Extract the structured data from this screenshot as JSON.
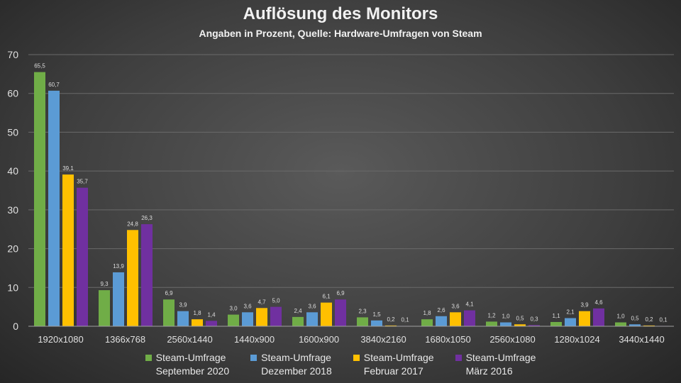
{
  "chart_data": {
    "type": "bar",
    "title": "Auflösung des Monitors",
    "subtitle": "Angaben in Prozent, Quelle: Hardware-Umfragen von Steam",
    "categories": [
      "1920x1080",
      "1366x768",
      "2560x1440",
      "1440x900",
      "1600x900",
      "3840x2160",
      "1680x1050",
      "2560x1080",
      "1280x1024",
      "3440x1440"
    ],
    "series": [
      {
        "name": "Steam-Umfrage September 2020",
        "line1": "Steam-Umfrage",
        "line2": "September 2020",
        "color": "#70ad47",
        "values": [
          65.5,
          9.3,
          6.9,
          3.0,
          2.4,
          2.3,
          1.8,
          1.2,
          1.1,
          1.0
        ]
      },
      {
        "name": "Steam-Umfrage Dezember 2018",
        "line1": "Steam-Umfrage",
        "line2": "Dezember 2018",
        "color": "#5b9bd5",
        "values": [
          60.7,
          13.9,
          3.9,
          3.6,
          3.6,
          1.5,
          2.6,
          1.0,
          2.1,
          0.5
        ]
      },
      {
        "name": "Steam-Umfrage Februar 2017",
        "line1": "Steam-Umfrage",
        "line2": "Februar 2017",
        "color": "#ffc000",
        "values": [
          39.1,
          24.8,
          1.8,
          4.7,
          6.1,
          0.2,
          3.6,
          0.5,
          3.9,
          0.2
        ]
      },
      {
        "name": "Steam-Umfrage März 2016",
        "line1": "Steam-Umfrage",
        "line2": "März 2016",
        "color": "#7030a0",
        "values": [
          35.7,
          26.3,
          1.4,
          5.0,
          6.9,
          0.1,
          4.1,
          0.3,
          4.6,
          0.1
        ]
      }
    ],
    "yticks": [
      0,
      10,
      20,
      30,
      40,
      50,
      60,
      70
    ],
    "ylim": [
      0,
      70
    ],
    "grid": true,
    "legend": "bottom",
    "decimal_separator": ","
  }
}
